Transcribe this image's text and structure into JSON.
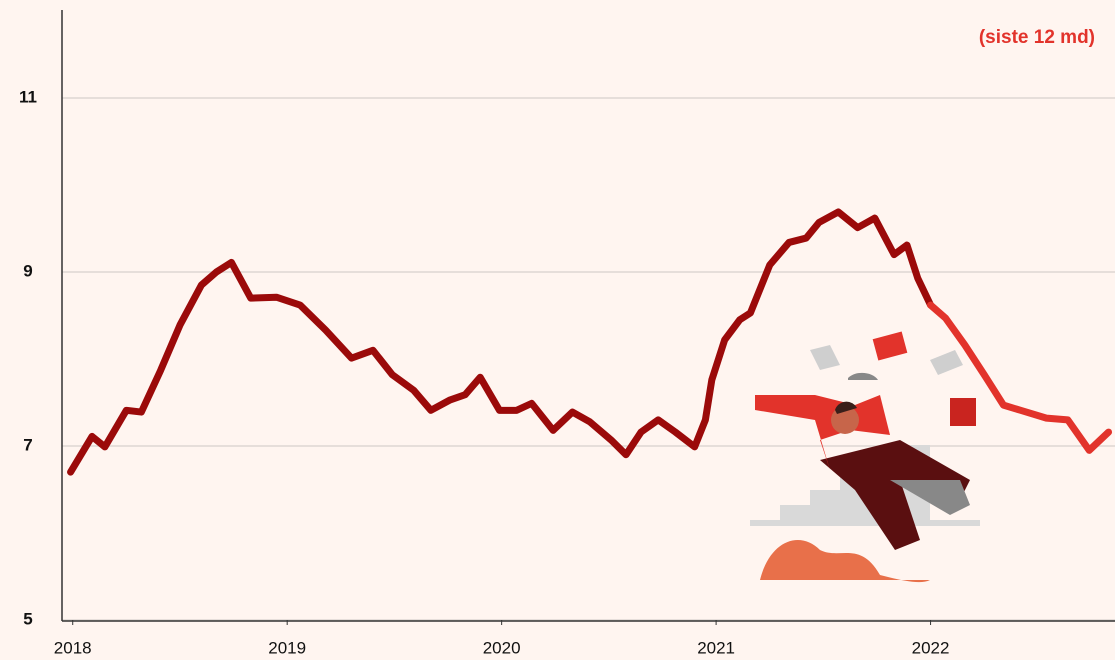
{
  "chart_data": {
    "type": "line",
    "subtitle": "(siste 12 md)",
    "x": [
      2017.99,
      2018.09,
      2018.15,
      2018.25,
      2018.32,
      2018.41,
      2018.5,
      2018.6,
      2018.67,
      2018.74,
      2018.83,
      2018.95,
      2019.06,
      2019.18,
      2019.3,
      2019.4,
      2019.49,
      2019.59,
      2019.67,
      2019.76,
      2019.83,
      2019.9,
      2019.99,
      2020.07,
      2020.14,
      2020.24,
      2020.33,
      2020.41,
      2020.51,
      2020.58,
      2020.65,
      2020.73,
      2020.81,
      2020.9,
      2020.95,
      2020.98,
      2021.04,
      2021.11,
      2021.16,
      2021.25,
      2021.34,
      2021.42,
      2021.48,
      2021.57,
      2021.66,
      2021.74,
      2021.83,
      2021.89,
      2021.94,
      2022.0,
      2022.07,
      2022.16,
      2022.25,
      2022.34,
      2022.42,
      2022.54,
      2022.64,
      2022.74,
      2022.83
    ],
    "series": [
      {
        "color": "#9b0a0a",
        "values": [
          6.7,
          7.11,
          6.99,
          7.41,
          7.39,
          7.87,
          8.39,
          8.85,
          9.0,
          9.11,
          8.7,
          8.71,
          8.62,
          8.33,
          8.01,
          8.1,
          7.82,
          7.64,
          7.41,
          7.53,
          7.59,
          7.79,
          7.41,
          7.41,
          7.49,
          7.18,
          7.39,
          7.28,
          7.07,
          6.9,
          7.16,
          7.3,
          7.16,
          6.99,
          7.3,
          7.76,
          8.22,
          8.45,
          8.53,
          9.08,
          9.34,
          9.39,
          9.57,
          9.69,
          9.51,
          9.62,
          9.2,
          9.31,
          8.93,
          8.62,
          null,
          null,
          null,
          null,
          null,
          null,
          null,
          null,
          null
        ]
      },
      {
        "color": "#e2332b",
        "values": [
          null,
          null,
          null,
          null,
          null,
          null,
          null,
          null,
          null,
          null,
          null,
          null,
          null,
          null,
          null,
          null,
          null,
          null,
          null,
          null,
          null,
          null,
          null,
          null,
          null,
          null,
          null,
          null,
          null,
          null,
          null,
          null,
          null,
          null,
          null,
          null,
          null,
          null,
          null,
          null,
          null,
          null,
          null,
          null,
          null,
          null,
          null,
          null,
          null,
          8.62,
          8.47,
          8.16,
          7.82,
          7.47,
          7.41,
          7.32,
          7.3,
          6.95,
          7.16
        ]
      }
    ],
    "xlim": [
      2017.95,
      2022.86
    ],
    "xticks": [
      2018,
      2019,
      2020,
      2021,
      2022
    ],
    "ylim": [
      5,
      12
    ],
    "yticks": [
      5,
      7,
      9,
      11
    ],
    "grid": true
  }
}
